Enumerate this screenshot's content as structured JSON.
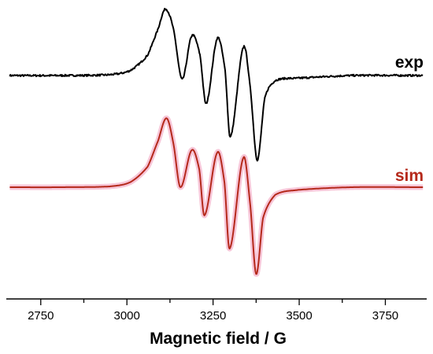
{
  "chart_data": {
    "type": "line",
    "title": "",
    "xlabel": "Magnetic field / G",
    "ylabel": "",
    "xlim": [
      2650,
      3870
    ],
    "x_ticks": [
      2750,
      3000,
      3250,
      3500,
      3750
    ],
    "x_minor_step": 125,
    "grid": false,
    "series": [
      {
        "name": "exp",
        "color": "#000000",
        "glow": "none",
        "noise": 0.7,
        "x": [
          2660,
          2800,
          2950,
          3010,
          3060,
          3090,
          3112,
          3135,
          3160,
          3188,
          3212,
          3230,
          3262,
          3285,
          3300,
          3338,
          3358,
          3378,
          3400,
          3430,
          3500,
          3650,
          3860
        ],
        "y": [
          0,
          0,
          0.3,
          2,
          8,
          18,
          26,
          18,
          -1.5,
          15.5,
          8,
          -11,
          14.5,
          2,
          -24,
          11,
          -5,
          -33,
          -9,
          -2,
          -1,
          0,
          0
        ]
      },
      {
        "name": "sim",
        "color": "#b5291b",
        "glow": "#f7c6d8",
        "noise": 0,
        "x": [
          2660,
          2800,
          2950,
          3010,
          3060,
          3090,
          3115,
          3135,
          3155,
          3188,
          3210,
          3225,
          3262,
          3283,
          3298,
          3338,
          3358,
          3375,
          3395,
          3430,
          3500,
          3650,
          3860
        ],
        "y": [
          0,
          0,
          0.3,
          2,
          8,
          18,
          27,
          17,
          0,
          14.5,
          7,
          -11,
          13.5,
          2,
          -24,
          11.5,
          -7,
          -34,
          -12,
          -3,
          -1,
          0,
          0
        ]
      }
    ]
  }
}
